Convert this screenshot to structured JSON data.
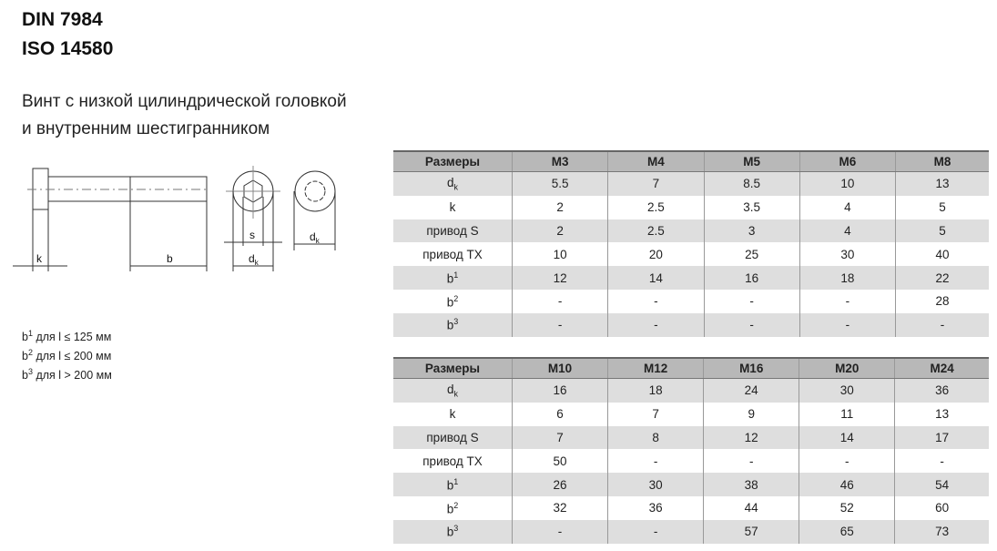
{
  "title": {
    "line1": "DIN 7984",
    "line2": "ISO 14580"
  },
  "subtitle": {
    "line1": "Винт с низкой цилиндрической головкой",
    "line2": "и внутренним шестигранником"
  },
  "drawing": {
    "k": "k",
    "b": "b",
    "s": "s",
    "dk": "d",
    "dk_sub": "k"
  },
  "notes": [
    {
      "b": "b",
      "sup": "1",
      "text": " для l ≤ 125 мм"
    },
    {
      "b": "b",
      "sup": "2",
      "text": " для l ≤ 200 мм"
    },
    {
      "b": "b",
      "sup": "3",
      "text": " для l > 200 мм"
    }
  ],
  "row_labels": {
    "header": "Размеры",
    "dk": "d",
    "dk_sub": "k",
    "k": "k",
    "s": "привод S",
    "tx": "привод TX",
    "b": "b",
    "b1": "1",
    "b2": "2",
    "b3": "3"
  },
  "tables": [
    {
      "sizes": [
        "M3",
        "M4",
        "M5",
        "M6",
        "M8"
      ],
      "dk": [
        "5.5",
        "7",
        "8.5",
        "10",
        "13"
      ],
      "k": [
        "2",
        "2.5",
        "3.5",
        "4",
        "5"
      ],
      "s": [
        "2",
        "2.5",
        "3",
        "4",
        "5"
      ],
      "tx": [
        "10",
        "20",
        "25",
        "30",
        "40"
      ],
      "b1": [
        "12",
        "14",
        "16",
        "18",
        "22"
      ],
      "b2": [
        "-",
        "-",
        "-",
        "-",
        "28"
      ],
      "b3": [
        "-",
        "-",
        "-",
        "-",
        "-"
      ]
    },
    {
      "sizes": [
        "M10",
        "M12",
        "M16",
        "M20",
        "M24"
      ],
      "dk": [
        "16",
        "18",
        "24",
        "30",
        "36"
      ],
      "k": [
        "6",
        "7",
        "9",
        "11",
        "13"
      ],
      "s": [
        "7",
        "8",
        "12",
        "14",
        "17"
      ],
      "tx": [
        "50",
        "-",
        "-",
        "-",
        "-"
      ],
      "b1": [
        "26",
        "30",
        "38",
        "46",
        "54"
      ],
      "b2": [
        "32",
        "36",
        "44",
        "52",
        "60"
      ],
      "b3": [
        "-",
        "-",
        "57",
        "65",
        "73"
      ]
    }
  ]
}
